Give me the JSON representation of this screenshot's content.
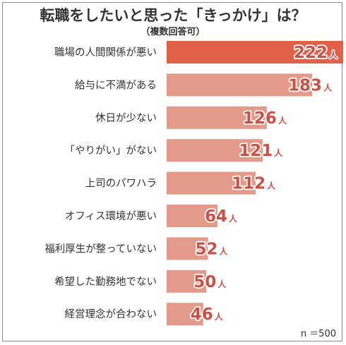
{
  "chart_data": {
    "type": "bar",
    "orientation": "horizontal",
    "title": "転職をしたいと思った「きっかけ」は？",
    "subtitle": "（複数回答可）",
    "categories": [
      "職場の人間関係が悪い",
      "給与に不満がある",
      "休日が少ない",
      "「やりがい」がない",
      "上司のパワハラ",
      "オフィス環境が悪い",
      "福利厚生が整っていない",
      "希望した勤務地でない",
      "経営理念が合わない"
    ],
    "values": [
      222,
      183,
      126,
      121,
      112,
      64,
      52,
      50,
      46
    ],
    "unit": "人",
    "xlim": [
      0,
      222
    ],
    "grid": false,
    "footnote": "n ＝500",
    "colors": {
      "highlight_bar": "#e0604a",
      "bar": "#e39a8a",
      "value_text": "#c95248",
      "category_text": "#333333"
    }
  }
}
